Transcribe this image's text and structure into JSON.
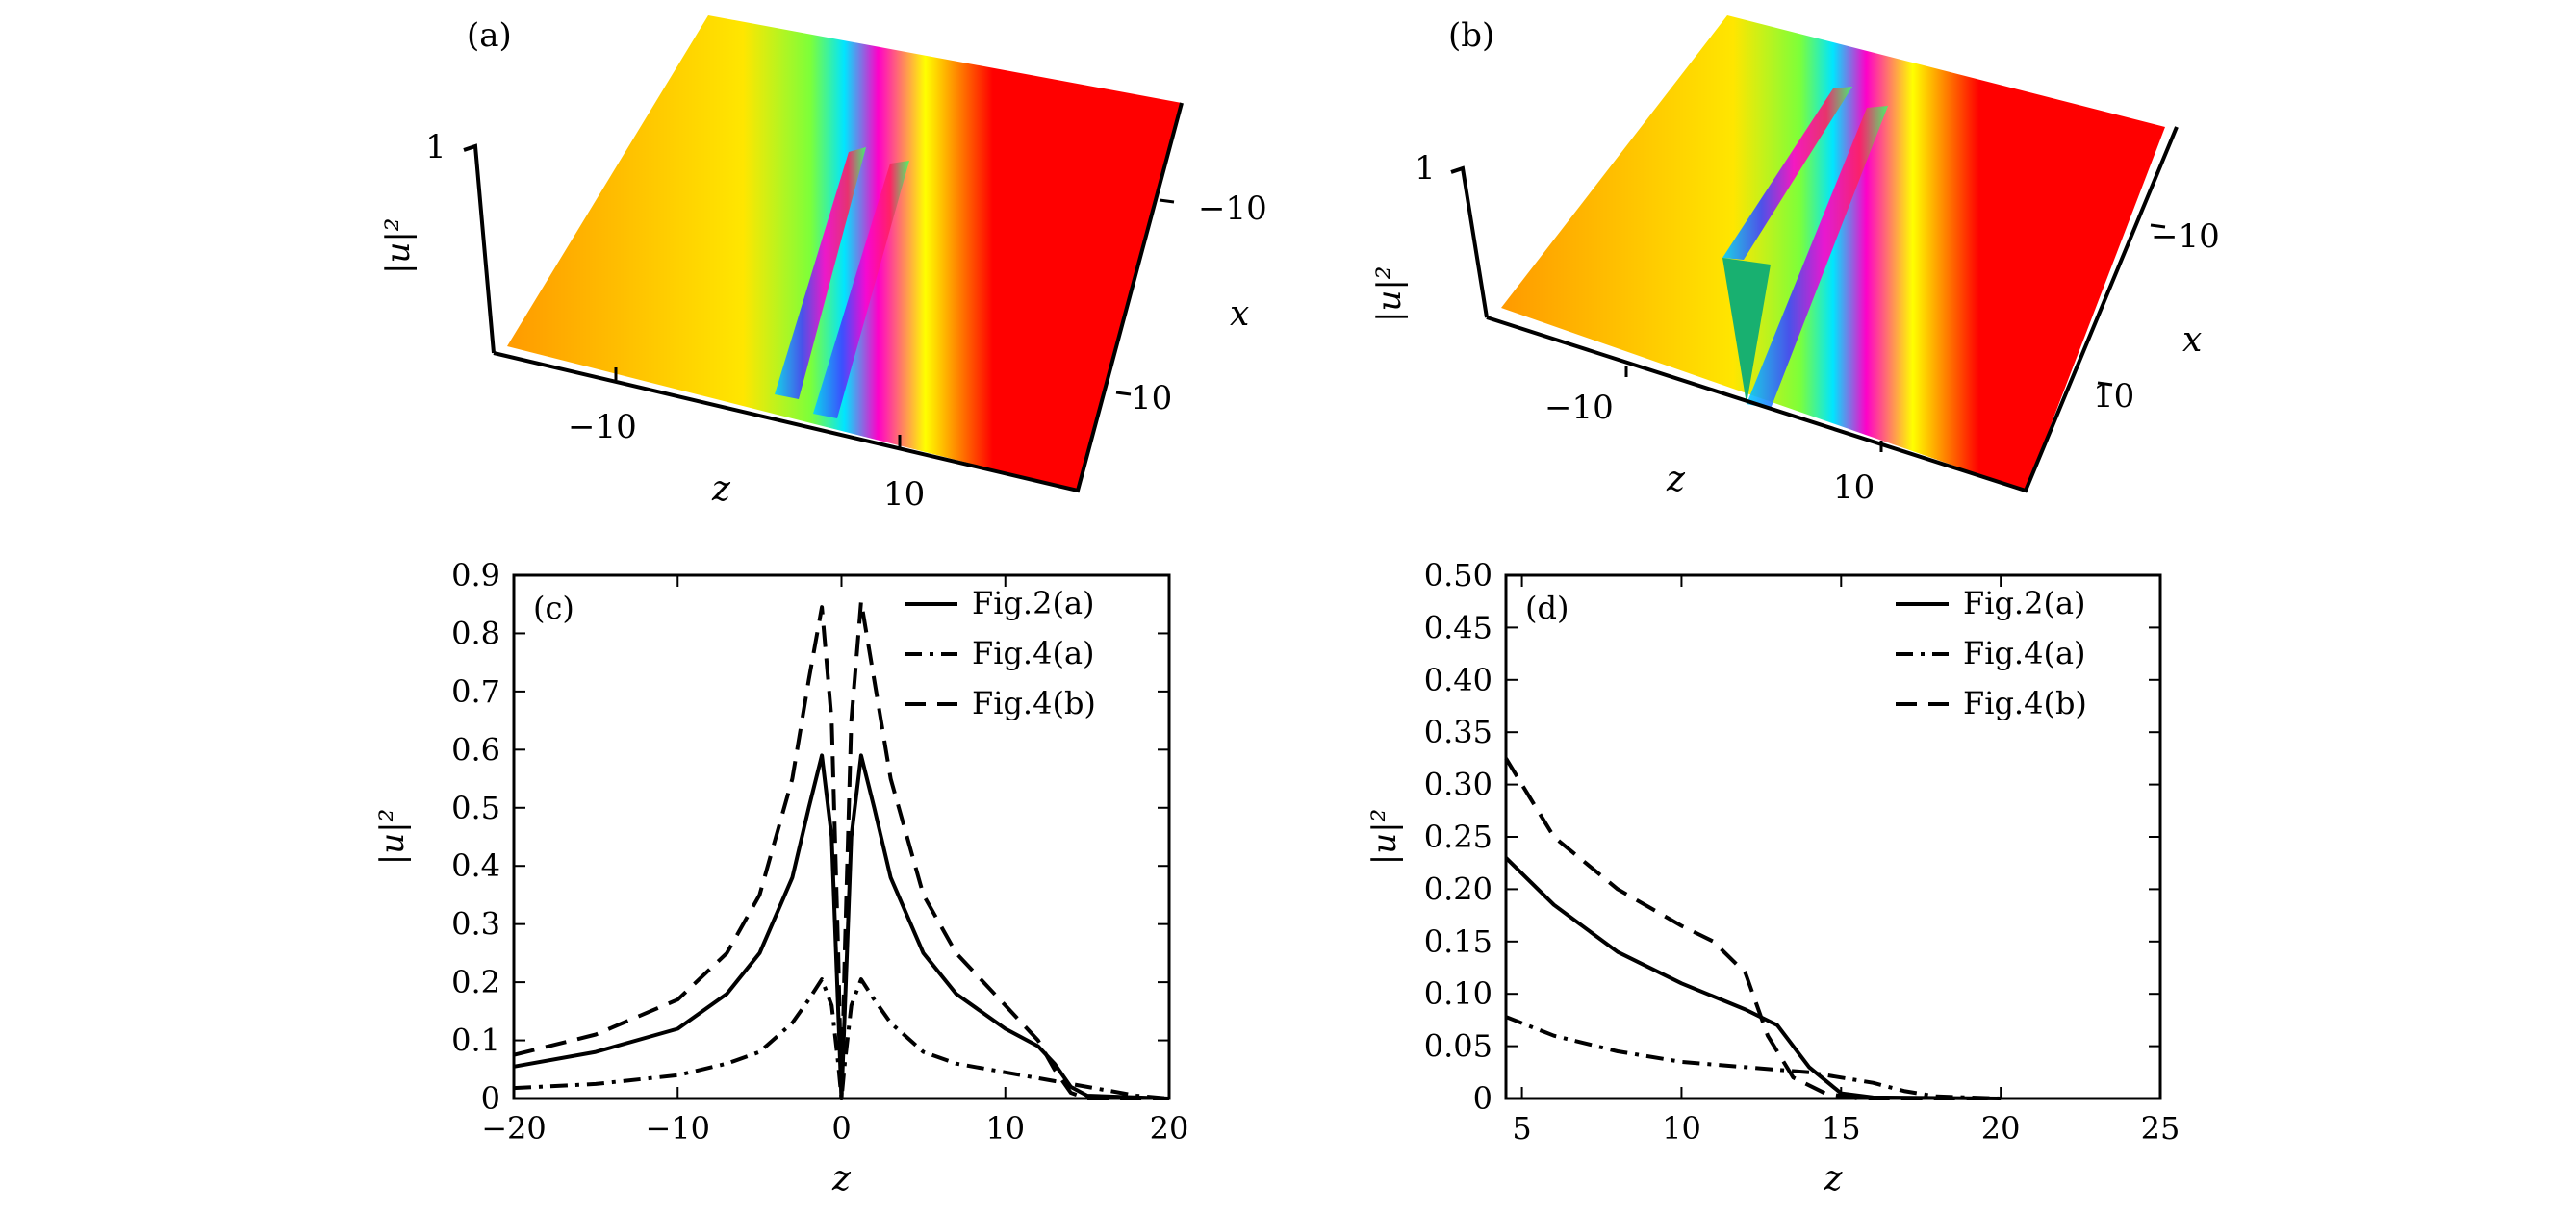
{
  "panels_3d": [
    {
      "label": "(a)",
      "zlabel": "|u|²",
      "z_tick": "1",
      "x_title": "x",
      "z_title": "z",
      "x_ticks": [
        "−10",
        "10"
      ],
      "zaxis_ticks": [
        "−10",
        "10"
      ]
    },
    {
      "label": "(b)",
      "zlabel": "|u|²",
      "z_tick": "1",
      "x_title": "x",
      "z_title": "z",
      "x_ticks": [
        "−10",
        "10"
      ],
      "zaxis_ticks": [
        "−10",
        "10"
      ]
    }
  ],
  "chart_data": [
    {
      "type": "line",
      "panel_label": "(c)",
      "xlabel": "z",
      "ylabel": "|u|²",
      "xlim": [
        -20,
        20
      ],
      "ylim": [
        0,
        0.9
      ],
      "x_ticks": [
        -20,
        -10,
        0,
        10,
        20
      ],
      "x_tick_labels": [
        "−20",
        "−10",
        "0",
        "10",
        "20"
      ],
      "y_ticks": [
        0,
        0.1,
        0.2,
        0.3,
        0.4,
        0.5,
        0.6,
        0.7,
        0.8,
        0.9
      ],
      "y_tick_labels": [
        "0",
        "0.1",
        "0.2",
        "0.3",
        "0.4",
        "0.5",
        "0.6",
        "0.7",
        "0.8",
        "0.9"
      ],
      "legend_position": "top-right",
      "series": [
        {
          "name": "Fig.2(a)",
          "style": "solid",
          "points": [
            [
              -20,
              0.055
            ],
            [
              -15,
              0.08
            ],
            [
              -10,
              0.12
            ],
            [
              -7,
              0.18
            ],
            [
              -5,
              0.25
            ],
            [
              -3,
              0.38
            ],
            [
              -2,
              0.5
            ],
            [
              -1.2,
              0.59
            ],
            [
              -0.6,
              0.45
            ],
            [
              -0.2,
              0.15
            ],
            [
              0,
              0
            ],
            [
              0.2,
              0.15
            ],
            [
              0.6,
              0.45
            ],
            [
              1.2,
              0.59
            ],
            [
              2,
              0.5
            ],
            [
              3,
              0.38
            ],
            [
              5,
              0.25
            ],
            [
              7,
              0.18
            ],
            [
              10,
              0.12
            ],
            [
              12,
              0.09
            ],
            [
              13,
              0.06
            ],
            [
              14,
              0.02
            ],
            [
              15,
              0.005
            ],
            [
              20,
              0.0
            ]
          ]
        },
        {
          "name": "Fig.4(a)",
          "style": "dashdot",
          "points": [
            [
              -20,
              0.018
            ],
            [
              -15,
              0.025
            ],
            [
              -10,
              0.04
            ],
            [
              -7,
              0.06
            ],
            [
              -5,
              0.08
            ],
            [
              -3,
              0.13
            ],
            [
              -2,
              0.17
            ],
            [
              -1.2,
              0.205
            ],
            [
              -0.6,
              0.16
            ],
            [
              -0.2,
              0.06
            ],
            [
              0,
              0
            ],
            [
              0.2,
              0.06
            ],
            [
              0.6,
              0.16
            ],
            [
              1.2,
              0.205
            ],
            [
              2,
              0.17
            ],
            [
              3,
              0.13
            ],
            [
              5,
              0.08
            ],
            [
              7,
              0.06
            ],
            [
              10,
              0.045
            ],
            [
              13,
              0.03
            ],
            [
              16,
              0.015
            ],
            [
              18,
              0.005
            ],
            [
              20,
              0.0
            ]
          ]
        },
        {
          "name": "Fig.4(b)",
          "style": "dashed",
          "points": [
            [
              -20,
              0.075
            ],
            [
              -15,
              0.11
            ],
            [
              -10,
              0.17
            ],
            [
              -7,
              0.25
            ],
            [
              -5,
              0.35
            ],
            [
              -3,
              0.55
            ],
            [
              -2,
              0.72
            ],
            [
              -1.2,
              0.845
            ],
            [
              -0.6,
              0.65
            ],
            [
              -0.2,
              0.25
            ],
            [
              0,
              0
            ],
            [
              0.2,
              0.25
            ],
            [
              0.6,
              0.65
            ],
            [
              1.2,
              0.855
            ],
            [
              2,
              0.72
            ],
            [
              3,
              0.55
            ],
            [
              5,
              0.35
            ],
            [
              7,
              0.25
            ],
            [
              10,
              0.16
            ],
            [
              12,
              0.1
            ],
            [
              13,
              0.05
            ],
            [
              14,
              0.01
            ],
            [
              15,
              0.0
            ],
            [
              20,
              0.0
            ]
          ]
        }
      ]
    },
    {
      "type": "line",
      "panel_label": "(d)",
      "xlabel": "z",
      "ylabel": "|u|²",
      "xlim": [
        4.5,
        25
      ],
      "ylim": [
        0,
        0.5
      ],
      "x_ticks": [
        5,
        10,
        15,
        20,
        25
      ],
      "x_tick_labels": [
        "5",
        "10",
        "15",
        "20",
        "25"
      ],
      "y_ticks": [
        0,
        0.05,
        0.1,
        0.15,
        0.2,
        0.25,
        0.3,
        0.35,
        0.4,
        0.45,
        0.5
      ],
      "y_tick_labels": [
        "0",
        "0.05",
        "0.10",
        "0.15",
        "0.20",
        "0.25",
        "0.30",
        "0.35",
        "0.40",
        "0.45",
        "0.50"
      ],
      "legend_position": "top-right",
      "series": [
        {
          "name": "Fig.2(a)",
          "style": "solid",
          "points": [
            [
              4.5,
              0.23
            ],
            [
              6,
              0.185
            ],
            [
              8,
              0.14
            ],
            [
              10,
              0.11
            ],
            [
              12,
              0.085
            ],
            [
              13,
              0.07
            ],
            [
              14,
              0.03
            ],
            [
              15,
              0.005
            ],
            [
              16,
              0.001
            ],
            [
              20,
              0.0
            ]
          ]
        },
        {
          "name": "Fig.4(a)",
          "style": "dashdot",
          "points": [
            [
              4.5,
              0.078
            ],
            [
              6,
              0.06
            ],
            [
              8,
              0.045
            ],
            [
              10,
              0.035
            ],
            [
              12,
              0.03
            ],
            [
              14,
              0.025
            ],
            [
              16,
              0.015
            ],
            [
              17,
              0.007
            ],
            [
              18,
              0.002
            ],
            [
              20,
              0.0
            ]
          ]
        },
        {
          "name": "Fig.4(b)",
          "style": "dashed",
          "points": [
            [
              4.5,
              0.325
            ],
            [
              6,
              0.25
            ],
            [
              8,
              0.2
            ],
            [
              10,
              0.165
            ],
            [
              11,
              0.15
            ],
            [
              12,
              0.12
            ],
            [
              12.7,
              0.06
            ],
            [
              13.5,
              0.02
            ],
            [
              14.5,
              0.005
            ],
            [
              15.5,
              0.0
            ],
            [
              20,
              0.0
            ]
          ]
        }
      ]
    }
  ]
}
